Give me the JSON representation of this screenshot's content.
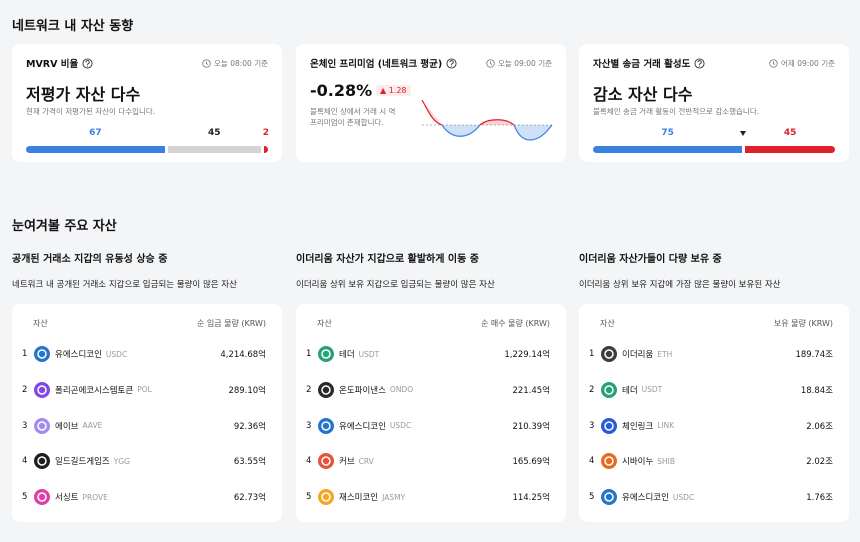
{
  "section1": {
    "title": "네트워크 내 자산 동향",
    "cards": [
      {
        "title": "MVRV 비율",
        "time": "오늘 08:00 기준",
        "headline": "저평가 자산 다수",
        "desc": [
          "현재 가격이 저평가된 자산이 다수입니다."
        ],
        "bar": [
          {
            "value": 67,
            "color": "#3b82e0"
          },
          {
            "value": 45,
            "color": "#d4d4d4"
          },
          {
            "value": 2,
            "color": "#e0202a"
          }
        ]
      },
      {
        "title": "온체인 프리미엄 (네트워크 평균)",
        "time": "오늘 09:00 기준",
        "headline": "-0.28%",
        "change": "▲ 1.28",
        "desc": [
          "블록체인 상에서 거래 시 역",
          "프리미엄이 존재합니다."
        ]
      },
      {
        "title": "자산별 송금 거래 활성도",
        "time": "어제 09:00 기준",
        "headline": "감소 자산 다수",
        "desc": [
          "블록체인 송금 거래 활동이 전반적으로 감소했습니다."
        ],
        "bar": [
          {
            "value": 75,
            "color": "#3b82e0"
          },
          {
            "value": 45,
            "color": "#e0202a"
          }
        ]
      }
    ]
  },
  "section2": {
    "title": "눈여겨볼 주요 자산",
    "panels": [
      {
        "title": "공개된 거래소 지갑의 유동성 상승 중",
        "desc": "네트워크 내 공개된 거래소 지갑으로 입금되는 물량이 많은 자산",
        "col_asset": "자산",
        "col_value": "순 입금 물량 (KRW)",
        "rows": [
          {
            "rank": 1,
            "name": "유에스디코인",
            "ticker": "USDC",
            "value": "4,214.68억",
            "color": "#2775ca"
          },
          {
            "rank": 2,
            "name": "폴리곤에코시스템토큰",
            "ticker": "POL",
            "value": "289.10억",
            "color": "#8247e5"
          },
          {
            "rank": 3,
            "name": "에이브",
            "ticker": "AAVE",
            "value": "92.36억",
            "color": "#a08cf0"
          },
          {
            "rank": 4,
            "name": "일드길드게임즈",
            "ticker": "YGG",
            "value": "63.55억",
            "color": "#1e1e1e"
          },
          {
            "rank": 5,
            "name": "서싱트",
            "ticker": "PROVE",
            "value": "62.73억",
            "color": "#e23fa6"
          }
        ]
      },
      {
        "title": "이더리움 자산가 지갑으로 활발하게 이동 중",
        "desc": "이더리움 상위 보유 지갑으로 입금되는 물량이 많은 자산",
        "col_asset": "자산",
        "col_value": "순 매수 물량 (KRW)",
        "rows": [
          {
            "rank": 1,
            "name": "테더",
            "ticker": "USDT",
            "value": "1,229.14억",
            "color": "#26a17b"
          },
          {
            "rank": 2,
            "name": "온도파이낸스",
            "ticker": "ONDO",
            "value": "221.45억",
            "color": "#2a2a2a"
          },
          {
            "rank": 3,
            "name": "유에스디코인",
            "ticker": "USDC",
            "value": "210.39억",
            "color": "#2775ca"
          },
          {
            "rank": 4,
            "name": "커브",
            "ticker": "CRV",
            "value": "165.69억",
            "color": "#e8533a"
          },
          {
            "rank": 5,
            "name": "재스미코인",
            "ticker": "JASMY",
            "value": "114.25억",
            "color": "#f5a623"
          }
        ]
      },
      {
        "title": "이더리움 자산가들이 다량 보유 중",
        "desc": "이더리움 상위 보유 지갑에 가장 많은 물량이 보유된 자산",
        "col_asset": "자산",
        "col_value": "보유 물량 (KRW)",
        "rows": [
          {
            "rank": 1,
            "name": "이더리움",
            "ticker": "ETH",
            "value": "189.74조",
            "color": "#3c3c3d"
          },
          {
            "rank": 2,
            "name": "테더",
            "ticker": "USDT",
            "value": "18.84조",
            "color": "#26a17b"
          },
          {
            "rank": 3,
            "name": "체인링크",
            "ticker": "LINK",
            "value": "2.06조",
            "color": "#2a5ada"
          },
          {
            "rank": 4,
            "name": "시바이누",
            "ticker": "SHIB",
            "value": "2.02조",
            "color": "#e86a1f"
          },
          {
            "rank": 5,
            "name": "유에스디코인",
            "ticker": "USDC",
            "value": "1.76조",
            "color": "#2775ca"
          }
        ]
      }
    ]
  }
}
